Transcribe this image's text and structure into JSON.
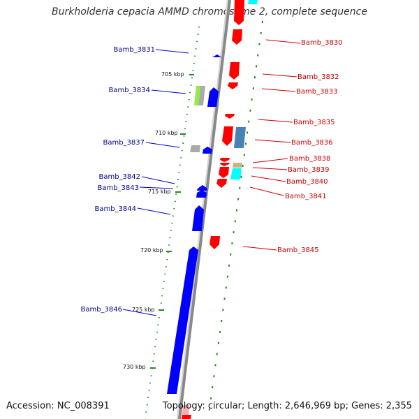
{
  "title": "Burkholderia cepacia AMMD chromosome 2, complete sequence",
  "accession": "Accession: NC_008391",
  "topology": "Topology: circular; Length: 2,646,969 bp; Genes: 2,355",
  "ruler": [
    "705 kbp",
    "710 kbp",
    "715 kbp",
    "720 kbp",
    "725 kbp",
    "730 kbp"
  ],
  "colors": {
    "minus_strand_label": "#00008b",
    "plus_strand_label": "#cc0000",
    "minus_gene": "#0000ff",
    "plus_gene": "#ff0000",
    "gc_skew_dots": "#228b22",
    "backbone": "#999999"
  },
  "left_genes": [
    "Bamb_3831",
    "Bamb_3834",
    "Bamb_3837",
    "Bamb_3842",
    "Bamb_3843",
    "Bamb_3844",
    "Bamb_3846"
  ],
  "right_genes": [
    "Bamb_3830",
    "Bamb_3832",
    "Bamb_3833",
    "Bamb_3835",
    "Bamb_3836",
    "Bamb_3838",
    "Bamb_3839",
    "Bamb_3840",
    "Bamb_3841",
    "Bamb_3845"
  ]
}
